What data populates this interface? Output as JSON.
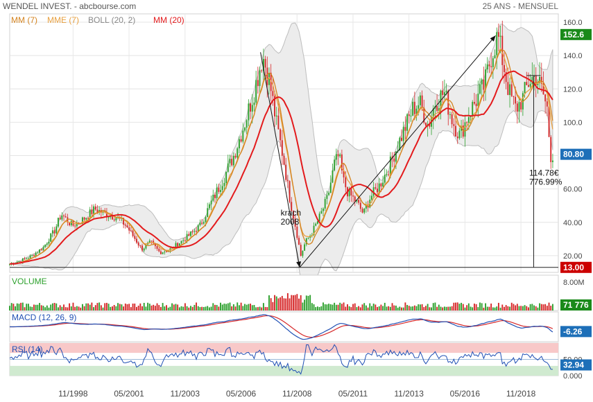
{
  "header": {
    "title": "WENDEL INVEST. - abcbourse.com",
    "period": "25 ANS - MENSUEL"
  },
  "colors": {
    "up": "#2ca02c",
    "down": "#d62728",
    "mm7": "#d4831f",
    "mme7": "#e8a040",
    "boll": "#bdbdbd",
    "mm20": "#e31a1c",
    "price_badge": "#1a8a1a",
    "last_badge": "#1a8a1a",
    "level_badge": "#1d6fb8",
    "low_badge": "#cc0000",
    "rsi_high": "#f8c8c8",
    "rsi_low": "#d0ead0",
    "macd_line": "#1f4fb4",
    "signal_line": "#d62728"
  },
  "chart_data": [
    {
      "type": "candlestick",
      "name": "price",
      "legend": [
        {
          "label": "MM (7)",
          "color": "#d4831f"
        },
        {
          "label": "MME (7)",
          "color": "#e8a040"
        },
        {
          "label": "BOLL (20, 2)",
          "color": "#888888"
        },
        {
          "label": "MM (20)",
          "color": "#e31a1c"
        }
      ],
      "ylim": [
        10,
        165
      ],
      "y_ticks": [
        "160.0",
        "140.0",
        "120.0",
        "100.0",
        "80.00",
        "60.00",
        "40.00",
        "20.00"
      ],
      "y_tick_values": [
        160,
        140,
        120,
        100,
        80,
        60,
        40,
        20
      ],
      "x_range": [
        1996.0,
        2020.5
      ],
      "x_ticks": [
        "11/1998",
        "05/2001",
        "11/2003",
        "05/2006",
        "11/2008",
        "05/2011",
        "11/2013",
        "05/2016",
        "11/2018"
      ],
      "x_tick_values": [
        1998.83,
        2001.33,
        2003.83,
        2006.33,
        2008.83,
        2011.33,
        2013.83,
        2016.33,
        2018.83
      ],
      "close_path": [
        [
          1996.0,
          15
        ],
        [
          1996.5,
          17
        ],
        [
          1997.0,
          20
        ],
        [
          1997.5,
          25
        ],
        [
          1998.0,
          35
        ],
        [
          1998.3,
          45
        ],
        [
          1998.8,
          38
        ],
        [
          1999.3,
          42
        ],
        [
          1999.8,
          48
        ],
        [
          2000.3,
          45
        ],
        [
          2000.8,
          43
        ],
        [
          2001.2,
          38
        ],
        [
          2001.6,
          30
        ],
        [
          2001.9,
          24
        ],
        [
          2002.3,
          28
        ],
        [
          2002.7,
          22
        ],
        [
          2003.2,
          24
        ],
        [
          2003.6,
          28
        ],
        [
          2004.0,
          32
        ],
        [
          2004.5,
          38
        ],
        [
          2005.0,
          52
        ],
        [
          2005.5,
          65
        ],
        [
          2006.0,
          80
        ],
        [
          2006.5,
          100
        ],
        [
          2006.9,
          118
        ],
        [
          2007.3,
          140
        ],
        [
          2007.6,
          125
        ],
        [
          2007.9,
          100
        ],
        [
          2008.2,
          80
        ],
        [
          2008.5,
          55
        ],
        [
          2008.8,
          35
        ],
        [
          2009.0,
          20
        ],
        [
          2009.2,
          28
        ],
        [
          2009.5,
          34
        ],
        [
          2009.8,
          42
        ],
        [
          2010.2,
          55
        ],
        [
          2010.5,
          75
        ],
        [
          2010.7,
          80
        ],
        [
          2010.9,
          65
        ],
        [
          2011.1,
          58
        ],
        [
          2011.5,
          52
        ],
        [
          2011.8,
          45
        ],
        [
          2012.1,
          55
        ],
        [
          2012.5,
          62
        ],
        [
          2012.9,
          72
        ],
        [
          2013.2,
          82
        ],
        [
          2013.6,
          95
        ],
        [
          2014.0,
          108
        ],
        [
          2014.3,
          112
        ],
        [
          2014.7,
          98
        ],
        [
          2015.0,
          112
        ],
        [
          2015.4,
          118
        ],
        [
          2015.8,
          100
        ],
        [
          2016.1,
          92
        ],
        [
          2016.5,
          105
        ],
        [
          2016.9,
          115
        ],
        [
          2017.2,
          122
        ],
        [
          2017.5,
          140
        ],
        [
          2017.8,
          152
        ],
        [
          2018.0,
          138
        ],
        [
          2018.3,
          118
        ],
        [
          2018.6,
          108
        ],
        [
          2018.9,
          114
        ],
        [
          2019.2,
          125
        ],
        [
          2019.5,
          128
        ],
        [
          2019.8,
          118
        ],
        [
          2020.0,
          108
        ],
        [
          2020.15,
          80
        ],
        [
          2020.3,
          80.8
        ]
      ],
      "annotations": [
        {
          "text_lines": [
            "krach",
            "2008"
          ],
          "x": 2008.1,
          "y": 44
        },
        {
          "text_lines": [
            "114.78€",
            "776.99%"
          ],
          "x": 2019.2,
          "y": 68
        }
      ],
      "badges": [
        {
          "label": "152.6",
          "value": 152.6,
          "kind": "price"
        },
        {
          "label": "80.80",
          "value": 80.8,
          "kind": "level"
        },
        {
          "label": "13.00",
          "value": 13.0,
          "kind": "low"
        }
      ],
      "reference_lines": [
        {
          "y": 13.0
        },
        {
          "x": 2019.4,
          "y_from": 13.0,
          "y_to": 128
        }
      ],
      "trend_arrows": [
        {
          "from": [
            2007.2,
            142
          ],
          "to": [
            2008.95,
            13
          ]
        },
        {
          "from": [
            2008.95,
            13
          ],
          "to": [
            2017.7,
            152
          ]
        }
      ]
    },
    {
      "type": "bar",
      "name": "volume",
      "title": "VOLUME",
      "ylim": [
        0,
        10
      ],
      "y_ticks": [
        "8.00M"
      ],
      "y_tick_values": [
        8
      ],
      "badge": "71 776",
      "badge_value": 0.07
    },
    {
      "type": "line",
      "name": "macd",
      "title": "MACD (12, 26, 9)",
      "badge": "-6.26",
      "badge_value": -6.26
    },
    {
      "type": "line",
      "name": "rsi",
      "title": "RSI (14)",
      "ylim": [
        0,
        100
      ],
      "y_ticks": [
        "50.00",
        "0.000"
      ],
      "y_tick_values": [
        50,
        0
      ],
      "bands": [
        {
          "from": 70,
          "to": 100
        },
        {
          "from": 0,
          "to": 30
        }
      ],
      "badge": "32.94",
      "badge_value": 32.94
    }
  ]
}
